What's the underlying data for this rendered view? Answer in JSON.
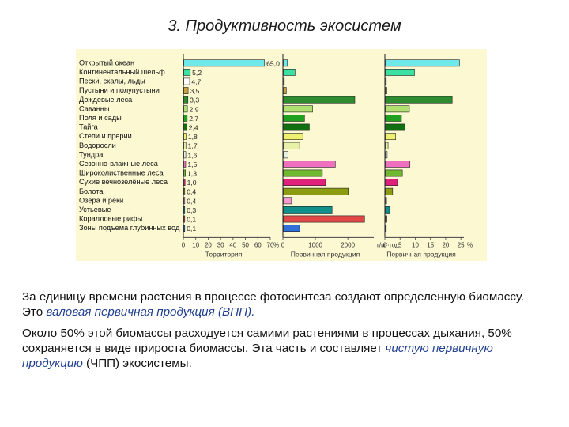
{
  "slide": {
    "title": "3. Продуктивность экосистем"
  },
  "chart_data": {
    "type": "bar",
    "orientation": "horizontal",
    "categories": [
      "Открытый океан",
      "Континентальный шельф",
      "Пески, скалы, льды",
      "Пустыни и полупустыни",
      "Дождевые леса",
      "Саванны",
      "Поля и сады",
      "Тайга",
      "Степи и прерии",
      "Водоросли",
      "Тундра",
      "Сезонно-влажные леса",
      "Широколиственные леса",
      "Сухие вечнозелёные леса",
      "Болота",
      "Озёра и реки",
      "Устьевые",
      "Коралловые рифы",
      "Зоны подъема глубинных вод"
    ],
    "colors": [
      "#6ee8e8",
      "#3ce0a0",
      "#ffffff",
      "#c8a040",
      "#2e8b2e",
      "#b0e070",
      "#1fa01f",
      "#107010",
      "#eef070",
      "#e8f0a8",
      "#e8f0e0",
      "#f070c0",
      "#70b830",
      "#e0207a",
      "#8c9c10",
      "#f49ad0",
      "#10908a",
      "#e04848",
      "#3070d8"
    ],
    "panels": [
      {
        "xlabel": "Территория",
        "unit": "%",
        "ticks": [
          "0",
          "10",
          "20",
          "30",
          "40",
          "50",
          "60",
          "70"
        ],
        "xlim": [
          0,
          70
        ],
        "data_labels": [
          "65,0",
          "5,2",
          "4,7",
          "3,5",
          "3,3",
          "2,9",
          "2,7",
          "2,4",
          "1,8",
          "1,7",
          "1,6",
          "1,5",
          "1,3",
          "1,0",
          "0,4",
          "0,4",
          "0,3",
          "0,1",
          "0,1"
        ],
        "values": [
          65.0,
          5.2,
          4.7,
          3.5,
          3.3,
          2.9,
          2.7,
          2.4,
          1.8,
          1.7,
          1.6,
          1.5,
          1.3,
          1.0,
          0.4,
          0.4,
          0.3,
          0.1,
          0.1
        ]
      },
      {
        "xlabel": "Первичная продукция",
        "unit": "г/м²·год",
        "ticks": [
          "0",
          "1000",
          "2000"
        ],
        "xlim": [
          0,
          2800
        ],
        "values": [
          125,
          360,
          3,
          90,
          2200,
          900,
          650,
          800,
          600,
          500,
          140,
          1600,
          1200,
          1300,
          2000,
          250,
          1500,
          2500,
          500
        ]
      },
      {
        "xlabel": "Первичная продукция",
        "unit": "%",
        "ticks": [
          "0",
          "5",
          "10",
          "15",
          "20",
          "25"
        ],
        "xlim": [
          0,
          26
        ],
        "values": [
          24.4,
          9.6,
          0.1,
          0.5,
          22.0,
          7.9,
          5.3,
          6.5,
          3.4,
          0.9,
          0.6,
          8.1,
          5.6,
          4.0,
          2.4,
          0.4,
          1.4,
          0.5,
          0.1
        ]
      }
    ]
  },
  "text": {
    "p1_a": "За единицу времени растения в процессе фотосинтеза создают определенную биомассу. Это ",
    "p1_term": "валовая первичная продукция (ВПП).",
    "p2_a": "Около 50% этой биомассы расходуется самими растениями в процессах дыхания, 50% сохраняется в виде прироста биомассы. Эта часть и составляет ",
    "p2_term": "чистую первичную продукцию",
    "p2_b": " (ЧПП) экосистемы."
  }
}
